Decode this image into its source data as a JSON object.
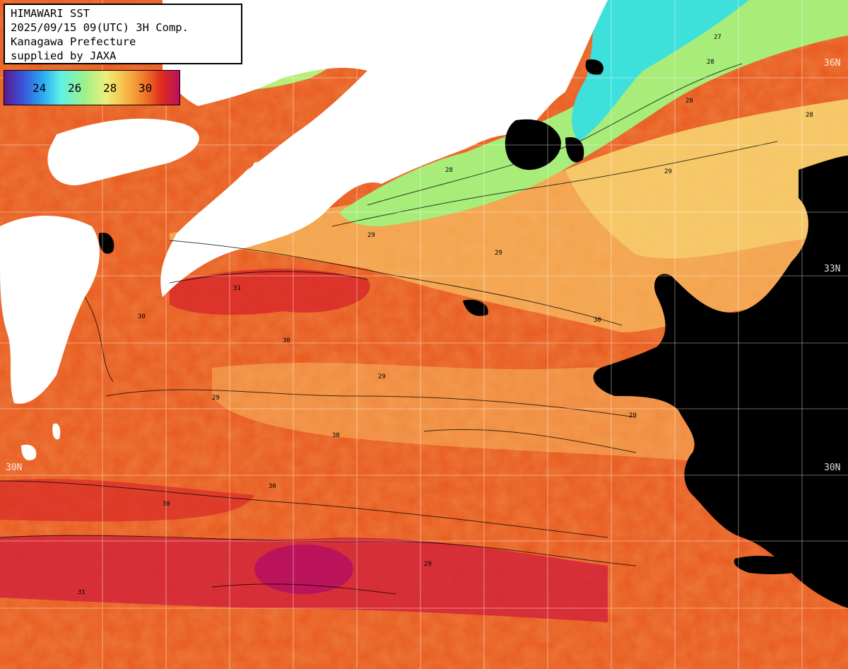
{
  "info": {
    "line1": "HIMAWARI SST",
    "line2": "2025/09/15 09(UTC) 3H Comp.",
    "line3": "Kanagawa Prefecture",
    "line4": "supplied by JAXA"
  },
  "legend": {
    "ticks": [
      "24",
      "26",
      "28",
      "30"
    ],
    "colors": [
      "#5a1a8c",
      "#3a4fd8",
      "#2aa9f0",
      "#5ef0e8",
      "#9ef08a",
      "#ecf07a",
      "#f8c04a",
      "#f07a2a",
      "#e02a1e",
      "#b81060"
    ]
  },
  "lat_labels": [
    "36N",
    "33N",
    "30N",
    "30N"
  ],
  "contour_labels": [
    "29",
    "28",
    "30",
    "29",
    "28",
    "27",
    "29",
    "30",
    "29",
    "28",
    "30",
    "31",
    "29",
    "30",
    "28",
    "29",
    "30",
    "31",
    "30",
    "29"
  ],
  "colors": {
    "land": "#ffffff",
    "cloud": "#000000",
    "sea_warm": "#e8581e",
    "sea_mid": "#f29a4a",
    "sea_cool": "#a8ec7a",
    "sea_cold": "#2ae0e0",
    "sea_hot": "#c8184e"
  }
}
